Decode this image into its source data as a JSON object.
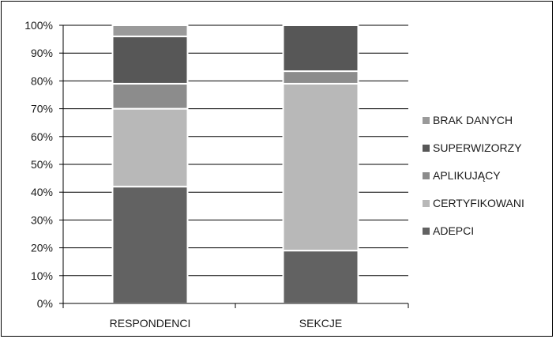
{
  "chart_data": {
    "type": "bar",
    "stacked": true,
    "percent": true,
    "categories": [
      "RESPONDENCI",
      "SEKCJE"
    ],
    "series": [
      {
        "name": "ADEPCI",
        "values": [
          42,
          19
        ],
        "color": "#626262"
      },
      {
        "name": "CERTYFIKOWANI",
        "values": [
          28,
          60
        ],
        "color": "#b8b8b8"
      },
      {
        "name": "APLIKUJĄCY",
        "values": [
          9,
          4.5
        ],
        "color": "#8c8c8c"
      },
      {
        "name": "SUPERWIZORZY",
        "values": [
          17,
          16.5
        ],
        "color": "#575757"
      },
      {
        "name": "BRAK DANYCH",
        "values": [
          4,
          0
        ],
        "color": "#9a9a9a"
      }
    ],
    "yticks": [
      "0%",
      "10%",
      "20%",
      "30%",
      "40%",
      "50%",
      "60%",
      "70%",
      "80%",
      "90%",
      "100%"
    ],
    "ylim": [
      0,
      100
    ],
    "grid": true,
    "legend_position": "right",
    "legend_order": [
      "BRAK DANYCH",
      "SUPERWIZORZY",
      "APLIKUJĄCY",
      "CERTYFIKOWANI",
      "ADEPCI"
    ],
    "title": "",
    "xlabel": "",
    "ylabel": ""
  }
}
